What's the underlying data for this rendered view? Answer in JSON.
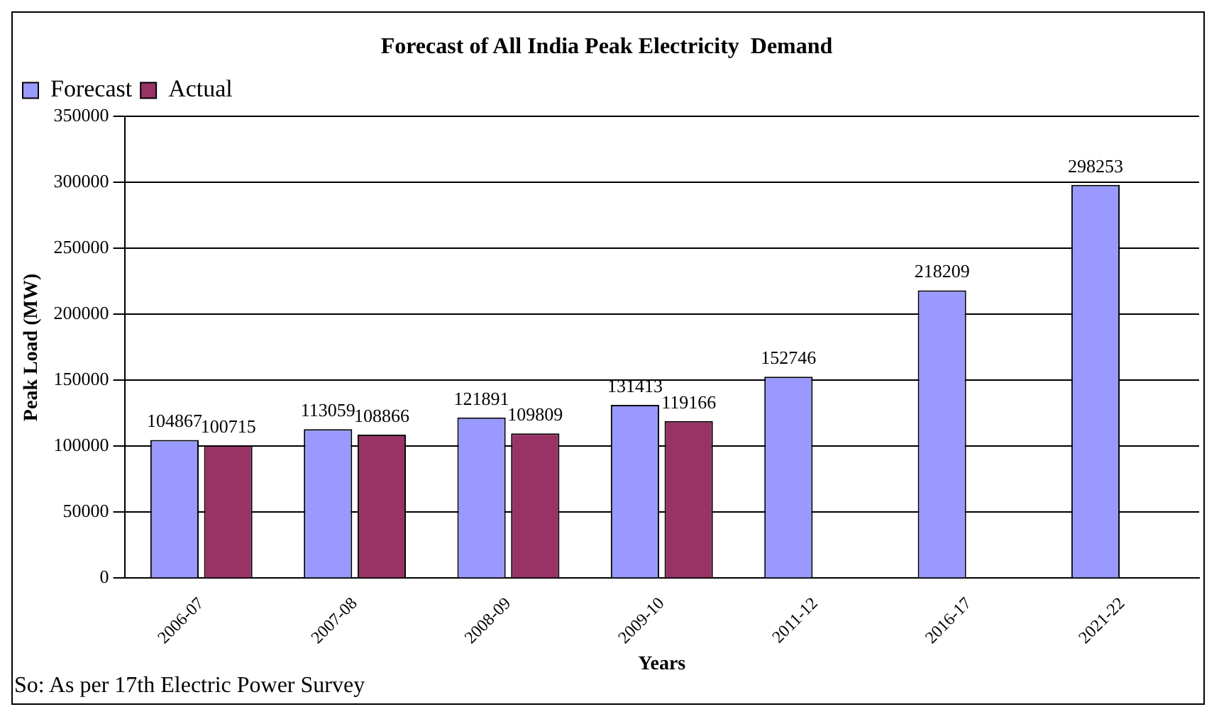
{
  "chart_data": {
    "type": "bar",
    "title": "Forecast of All India Peak Electricity  Demand",
    "xlabel": "Years",
    "ylabel": "Peak Load (MW)",
    "categories": [
      "2006-07",
      "2007-08",
      "2008-09",
      "2009-10",
      "2011-12",
      "2016-17",
      "2021-22"
    ],
    "series": [
      {
        "name": "Forecast",
        "color": "#9999ff",
        "values": [
          104867,
          113059,
          121891,
          131413,
          152746,
          218209,
          298253
        ]
      },
      {
        "name": "Actual",
        "color": "#993366",
        "values": [
          100715,
          108866,
          109809,
          119166,
          null,
          null,
          null
        ]
      }
    ],
    "ylim": [
      0,
      350000
    ],
    "yticks": [
      0,
      50000,
      100000,
      150000,
      200000,
      250000,
      300000,
      350000
    ],
    "grid": "y",
    "legend": "top left",
    "data_labels": true,
    "annotations": [
      "So: As per 17th Electric Power Survey"
    ]
  }
}
